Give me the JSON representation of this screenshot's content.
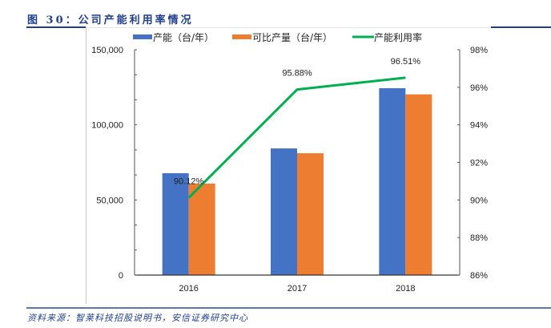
{
  "header": {
    "title": "图 30：公司产能利用率情况"
  },
  "footer": {
    "source": "资料来源：智莱科技招股说明书，安信证券研究中心"
  },
  "colors": {
    "capacity": "#4472c4",
    "output": "#ed7d31",
    "utilization": "#00b050",
    "title": "#1f3e8c"
  },
  "chart_data": {
    "type": "bar",
    "title": "公司产能利用率情况",
    "categories": [
      "2016",
      "2017",
      "2018"
    ],
    "series": [
      {
        "name": "产能（台/年）",
        "type": "bar",
        "axis": "left",
        "values": [
          67800,
          84300,
          124400
        ]
      },
      {
        "name": "可比产量（台/年）",
        "type": "bar",
        "axis": "left",
        "values": [
          60900,
          81100,
          120300
        ]
      },
      {
        "name": "产能利用率",
        "type": "line",
        "axis": "right",
        "values": [
          90.12,
          95.88,
          96.51
        ],
        "labels": [
          "90.12%",
          "95.88%",
          "96.51%"
        ]
      }
    ],
    "left_axis": {
      "ylim": [
        0,
        150000
      ],
      "ticks": [
        0,
        50000,
        100000,
        150000
      ],
      "tick_labels": [
        "0",
        "50,000",
        "100,000",
        "150,000"
      ]
    },
    "right_axis": {
      "ylim": [
        86,
        98
      ],
      "ticks": [
        86,
        88,
        90,
        92,
        94,
        96,
        98
      ],
      "tick_labels": [
        "86%",
        "88%",
        "90%",
        "92%",
        "94%",
        "96%",
        "98%"
      ]
    },
    "xlabel": "",
    "ylabel": "",
    "grid": false,
    "legend_position": "top"
  }
}
